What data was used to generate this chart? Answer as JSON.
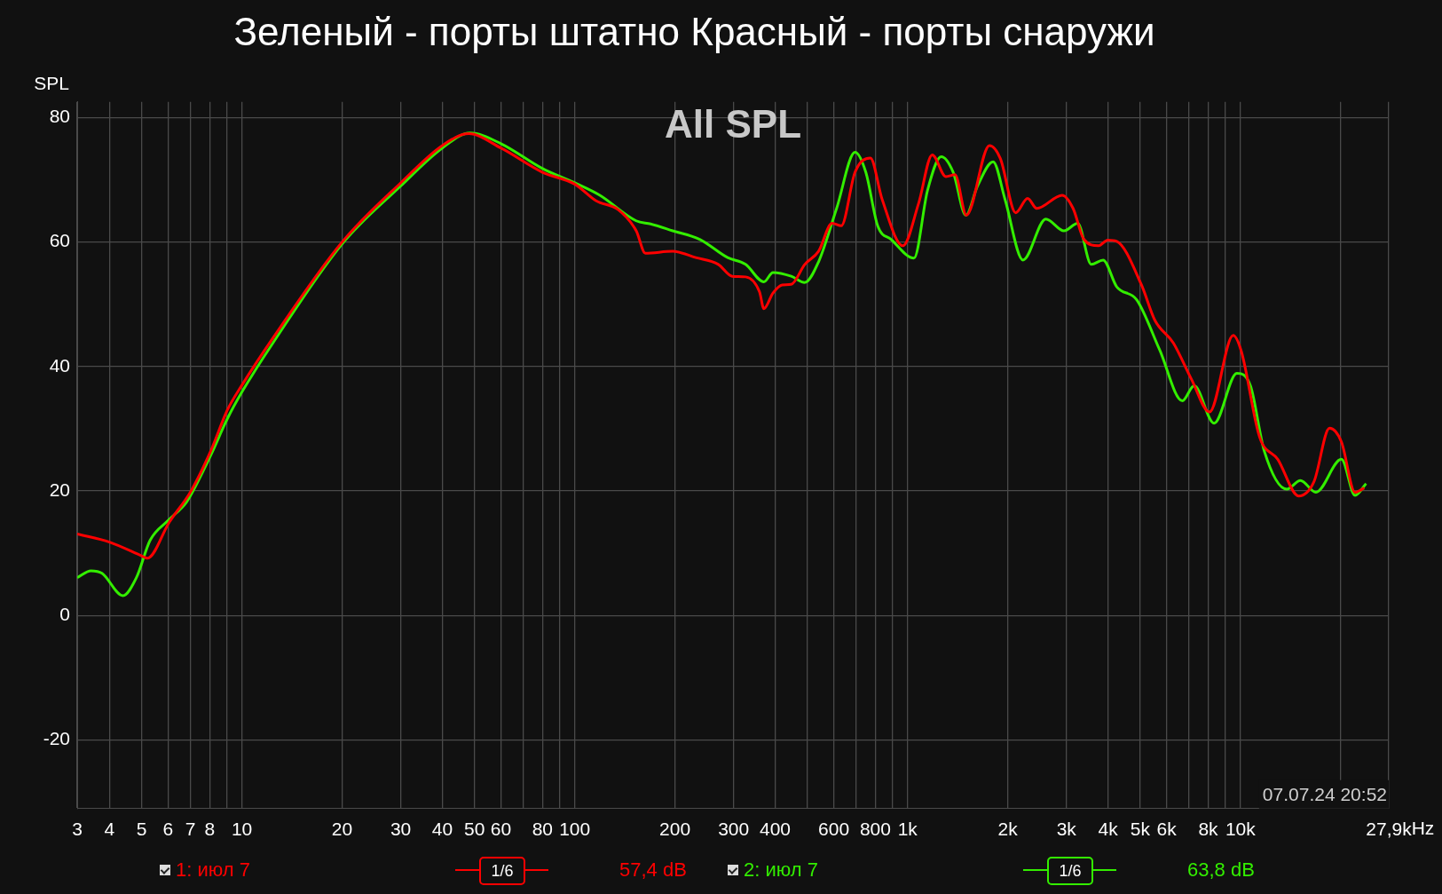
{
  "chart_data": {
    "type": "line",
    "title": "Зеленый - порты штатно Красный - порты снаружи",
    "subtitle": "All SPL",
    "ylabel": "SPL",
    "xlabel": "Hz",
    "annotations": [
      "07.07.24 20:52",
      "1/6",
      "57,4 dB",
      "1/6",
      "63,8 dB"
    ],
    "log": "x",
    "grid": true,
    "legend": "bottom",
    "marker": "none",
    "line_style": "solid",
    "xlim": [
      3.2,
      27900
    ],
    "ylim": [
      -31,
      82.5
    ],
    "xticks": [
      {
        "value": 3.2,
        "label": "3"
      },
      4,
      5,
      6,
      7,
      8,
      {
        "value": 9,
        "label": null
      },
      10,
      20,
      30,
      40,
      50,
      60,
      {
        "value": 70,
        "label": null
      },
      80,
      {
        "value": 90,
        "label": null
      },
      100,
      200,
      300,
      400,
      {
        "value": 500,
        "label": null
      },
      600,
      {
        "value": 700,
        "label": null
      },
      800,
      {
        "value": 900,
        "label": null
      },
      {
        "value": 1000,
        "label": "1k"
      },
      {
        "value": 2000,
        "label": "2k"
      },
      {
        "value": 3000,
        "label": "3k"
      },
      {
        "value": 4000,
        "label": "4k"
      },
      {
        "value": 5000,
        "label": "5k"
      },
      {
        "value": 6000,
        "label": "6k"
      },
      {
        "value": 7000,
        "label": null
      },
      {
        "value": 8000,
        "label": "8k"
      },
      {
        "value": 9000,
        "label": null
      },
      {
        "value": 10000,
        "label": "10k"
      },
      {
        "value": 20000,
        "label": null
      },
      {
        "value": 27900,
        "label": "27,9k"
      }
    ],
    "yticks": [
      -20,
      0,
      20,
      40,
      60,
      80
    ],
    "series": [
      {
        "name": "1: июл 7",
        "color": "#ff0000",
        "x": [
          3.2,
          4,
          5.04,
          5.2,
          6.05,
          7.03,
          8.07,
          9.04,
          10,
          12.4,
          20,
          30,
          40,
          48,
          60,
          80,
          100,
          116,
          135,
          153,
          163,
          197,
          231,
          270,
          297,
          326,
          359,
          370,
          394,
          420,
          447,
          491,
          540,
          593,
          632,
          695,
          773,
          838,
          968,
          1079,
          1186,
          1303,
          1388,
          1502,
          1762,
          1900,
          2113,
          2294,
          2443,
          2914,
          3142,
          3388,
          3748,
          3992,
          4250,
          5036,
          5537,
          6285,
          7119,
          8075,
          9512,
          10066,
          11412,
          12946,
          14959,
          16630,
          18520,
          20110,
          22100,
          23550
        ],
        "values": [
          13.1,
          11.8,
          9.5,
          9.2,
          15,
          20,
          26.5,
          33,
          37,
          44.6,
          60,
          69.5,
          75.5,
          77.4,
          75.1,
          71.2,
          69.3,
          66.6,
          65.2,
          61.8,
          58.2,
          58.5,
          57.5,
          56.4,
          54.5,
          54.4,
          52,
          49.3,
          51.8,
          53.1,
          53.2,
          56.4,
          58.5,
          63,
          62.6,
          71.2,
          73.5,
          66.9,
          59.4,
          66.2,
          74,
          70.5,
          70.8,
          64.3,
          75.5,
          73.4,
          64.7,
          67,
          65.4,
          67.5,
          65.4,
          60.4,
          59.4,
          60.3,
          60.1,
          53.2,
          47.4,
          43.8,
          38,
          32.7,
          45,
          42.4,
          28.7,
          25.1,
          19.2,
          21.5,
          30.1,
          27.9,
          19.8,
          20.5
        ]
      },
      {
        "name": "2: июл 7",
        "color": "#33ee00",
        "x": [
          3.2,
          3.52,
          3.8,
          4.39,
          4.82,
          5.3,
          6.01,
          6.81,
          7.26,
          8.07,
          9.04,
          10,
          12.4,
          20,
          30,
          40,
          48.5,
          60,
          80,
          100,
          119,
          153,
          169,
          197,
          238,
          288,
          326,
          370,
          394,
          447,
          491,
          540,
          612,
          695,
          749,
          813,
          893,
          1045,
          1148,
          1262,
          1371,
          1496,
          1622,
          1807,
          1961,
          2222,
          2602,
          2950,
          3244,
          3564,
          3866,
          4250,
          4883,
          5716,
          6690,
          7259,
          8335,
          9755,
          10718,
          11781,
          13783,
          15148,
          16850,
          20110,
          22100,
          23850
        ],
        "values": [
          6.1,
          7.2,
          6.8,
          3.2,
          6.1,
          12.1,
          15.3,
          18.2,
          20.8,
          25.8,
          31.6,
          35.9,
          43.8,
          59.7,
          69,
          75.1,
          77.5,
          75.8,
          71.8,
          69.5,
          67.5,
          63.4,
          62.9,
          61.8,
          60.4,
          57.5,
          56.4,
          53.6,
          55.1,
          54.5,
          53.5,
          56.8,
          65.4,
          74.4,
          71.2,
          62.6,
          60.4,
          57.4,
          68.3,
          73.7,
          71.2,
          64.3,
          69,
          72.9,
          66.9,
          57.1,
          63.7,
          61.8,
          63,
          56.4,
          57.1,
          52.8,
          50.7,
          42.7,
          34.5,
          36.9,
          30.9,
          38.9,
          36.9,
          26.5,
          20.3,
          21.7,
          19.8,
          25.1,
          19.3,
          21.2
        ]
      }
    ]
  }
}
